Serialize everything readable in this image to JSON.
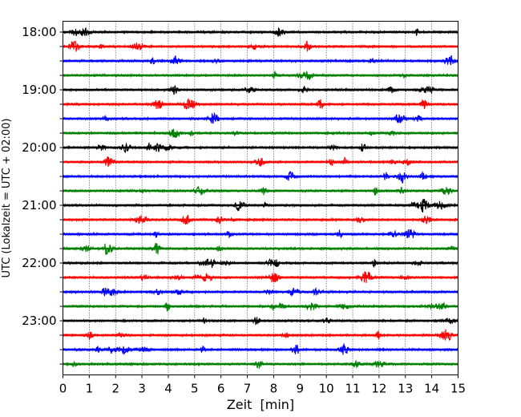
{
  "chart_data": {
    "type": "line",
    "xlabel": "Zeit  [min]",
    "ylabel": "UTC (Lokalzeit = UTC + 02:00)",
    "xlim": [
      0,
      15
    ],
    "x_ticks": [
      0,
      1,
      2,
      3,
      4,
      5,
      6,
      7,
      8,
      9,
      10,
      11,
      12,
      13,
      14,
      15
    ],
    "y_tick_labels": [
      "18:00",
      "19:00",
      "20:00",
      "21:00",
      "22:00",
      "23:00"
    ],
    "grid": "vertical dotted lines at each minute",
    "line_colors": [
      "#000000",
      "#ff0000",
      "#0000ff",
      "#008000"
    ],
    "series": [
      {
        "start": "18:00",
        "color": "#000000"
      },
      {
        "start": "18:15",
        "color": "#ff0000"
      },
      {
        "start": "18:30",
        "color": "#0000ff"
      },
      {
        "start": "18:45",
        "color": "#008000"
      },
      {
        "start": "19:00",
        "color": "#000000"
      },
      {
        "start": "19:15",
        "color": "#ff0000"
      },
      {
        "start": "19:30",
        "color": "#0000ff"
      },
      {
        "start": "19:45",
        "color": "#008000"
      },
      {
        "start": "20:00",
        "color": "#000000"
      },
      {
        "start": "20:15",
        "color": "#ff0000"
      },
      {
        "start": "20:30",
        "color": "#0000ff"
      },
      {
        "start": "20:45",
        "color": "#008000"
      },
      {
        "start": "21:00",
        "color": "#000000"
      },
      {
        "start": "21:15",
        "color": "#ff0000"
      },
      {
        "start": "21:30",
        "color": "#0000ff"
      },
      {
        "start": "21:45",
        "color": "#008000"
      },
      {
        "start": "22:00",
        "color": "#000000"
      },
      {
        "start": "22:15",
        "color": "#ff0000"
      },
      {
        "start": "22:30",
        "color": "#0000ff"
      },
      {
        "start": "22:45",
        "color": "#008000"
      },
      {
        "start": "23:00",
        "color": "#000000"
      },
      {
        "start": "23:15",
        "color": "#ff0000"
      },
      {
        "start": "23:30",
        "color": "#0000ff"
      },
      {
        "start": "23:45",
        "color": "#008000"
      }
    ]
  }
}
